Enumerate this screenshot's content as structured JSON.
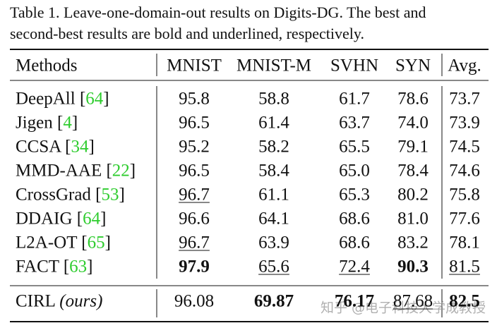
{
  "caption": [
    "Table 1. Leave-one-domain-out results on Digits-DG. The best and",
    "second-best results are bold and underlined, respectively."
  ],
  "table": {
    "header": [
      "Methods",
      "MNIST",
      "MNIST-M",
      "SVHN",
      "SYN",
      "Avg."
    ],
    "rows": [
      {
        "method": "DeepAll [64]",
        "cells": [
          {
            "text": "95.8"
          },
          {
            "text": "58.8"
          },
          {
            "text": "61.7"
          },
          {
            "text": "78.6"
          },
          {
            "text": "73.7"
          }
        ]
      },
      {
        "method": "Jigen [4]",
        "cells": [
          {
            "text": "96.5"
          },
          {
            "text": "61.4"
          },
          {
            "text": "63.7"
          },
          {
            "text": "74.0"
          },
          {
            "text": "73.9"
          }
        ]
      },
      {
        "method": "CCSA [34]",
        "cells": [
          {
            "text": "95.2"
          },
          {
            "text": "58.2"
          },
          {
            "text": "65.5"
          },
          {
            "text": "79.1"
          },
          {
            "text": "74.5"
          }
        ]
      },
      {
        "method": "MMD-AAE [22]",
        "cells": [
          {
            "text": "96.5"
          },
          {
            "text": "58.4"
          },
          {
            "text": "65.0"
          },
          {
            "text": "78.4"
          },
          {
            "text": "74.6"
          }
        ]
      },
      {
        "method": "CrossGrad [53]",
        "cells": [
          {
            "text": "96.7",
            "underline": true
          },
          {
            "text": "61.1"
          },
          {
            "text": "65.3"
          },
          {
            "text": "80.2"
          },
          {
            "text": "75.8"
          }
        ]
      },
      {
        "method": "DDAIG [64]",
        "cells": [
          {
            "text": "96.6"
          },
          {
            "text": "64.1"
          },
          {
            "text": "68.6"
          },
          {
            "text": "81.0"
          },
          {
            "text": "77.6"
          }
        ]
      },
      {
        "method": "L2A-OT [65]",
        "cells": [
          {
            "text": "96.7",
            "underline": true
          },
          {
            "text": "63.9"
          },
          {
            "text": "68.6"
          },
          {
            "text": "83.2"
          },
          {
            "text": "78.1"
          }
        ]
      },
      {
        "method": "FACT [63]",
        "cells": [
          {
            "text": "97.9",
            "bold": true
          },
          {
            "text": "65.6",
            "underline": true
          },
          {
            "text": "72.4",
            "underline": true
          },
          {
            "text": "90.3",
            "bold": true
          },
          {
            "text": "81.5",
            "underline": true
          }
        ]
      }
    ],
    "final_row": {
      "method": "CIRL (ours)",
      "cells": [
        {
          "text": "96.08"
        },
        {
          "text": "69.87",
          "bold": true
        },
        {
          "text": "76.17",
          "bold": true
        },
        {
          "text": "87.68",
          "underline": true
        },
        {
          "text": "82.5",
          "bold": true
        }
      ]
    }
  },
  "watermark": "知乎 @电子科技大学成教授"
}
